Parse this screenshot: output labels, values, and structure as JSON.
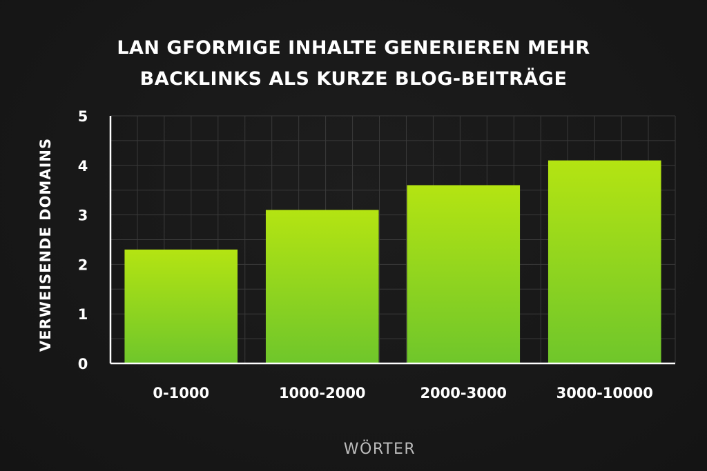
{
  "chart_data": {
    "type": "bar",
    "title_lines": [
      "LAN GFORMIGE INHALTE GENERIEREN MEHR",
      "BACKLINKS ALS KURZE BLOG-BEITRÄGE"
    ],
    "categories": [
      "0-1000",
      "1000-2000",
      "2000-3000",
      "3000-10000"
    ],
    "values": [
      2.3,
      3.1,
      3.6,
      4.1
    ],
    "xlabel": "WÖRTER",
    "ylabel": "VERWEISENDE DOMAINS",
    "ylim": [
      0,
      5
    ],
    "yticks": [
      "0",
      "1",
      "2",
      "3",
      "4",
      "5"
    ],
    "grid": true,
    "colors": {
      "bar_top": "#b4e412",
      "bar_bottom": "#6fc62b",
      "grid": "#3a3a3a",
      "axis": "#ffffff",
      "background": "#161616"
    }
  }
}
